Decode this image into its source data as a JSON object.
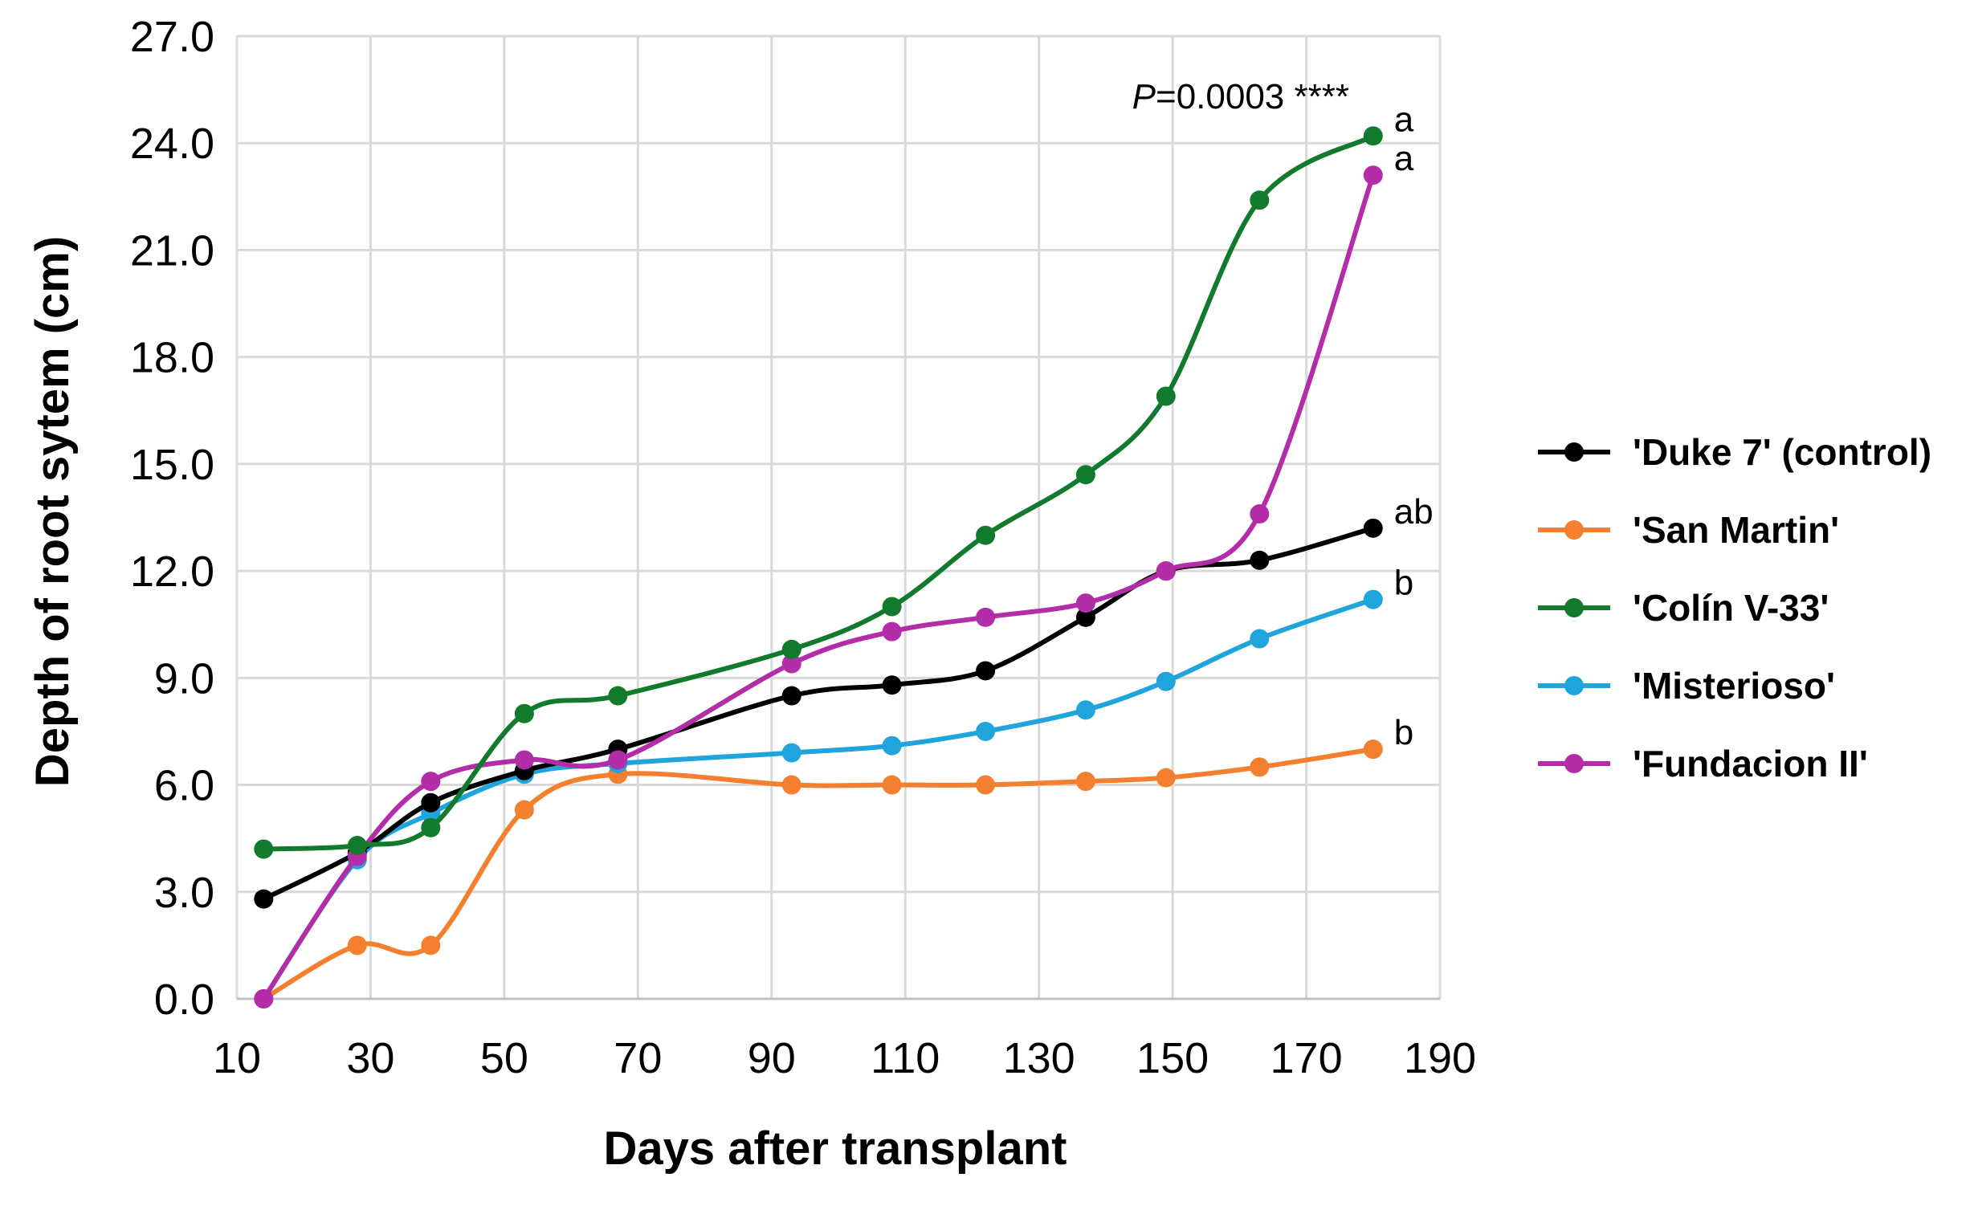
{
  "chart_data": {
    "type": "line",
    "xlabel": "Days after transplant",
    "ylabel": "Depth of root sytem (cm)",
    "xlim": [
      10,
      190
    ],
    "ylim": [
      0,
      27
    ],
    "xticks": [
      10,
      30,
      50,
      70,
      90,
      110,
      130,
      150,
      170,
      190
    ],
    "yticks": [
      0,
      3,
      6,
      9,
      12,
      15,
      18,
      21,
      24,
      27
    ],
    "ytick_format": "1 decimal",
    "grid": true,
    "legend_position": "right",
    "x": [
      14,
      28,
      39,
      53,
      67,
      93,
      108,
      122,
      137,
      149,
      163,
      180
    ],
    "series": [
      {
        "name": "'Duke 7' (control)",
        "color": "#000000",
        "values": [
          2.8,
          4.1,
          5.5,
          6.4,
          7.0,
          8.5,
          8.8,
          9.2,
          10.7,
          12.0,
          12.3,
          13.2
        ],
        "end_label": "ab"
      },
      {
        "name": "'San Martin'",
        "color": "#F47F2F",
        "values": [
          0.0,
          1.5,
          1.5,
          5.3,
          6.3,
          6.0,
          6.0,
          6.0,
          6.1,
          6.2,
          6.5,
          7.0
        ],
        "end_label": "b"
      },
      {
        "name": "'Colín V-33'",
        "color": "#117A2C",
        "values": [
          4.2,
          4.3,
          4.8,
          8.0,
          8.5,
          9.8,
          11.0,
          13.0,
          14.7,
          16.9,
          22.4,
          24.2
        ],
        "end_label": "a"
      },
      {
        "name": "'Misterioso'",
        "color": "#1FA5DB",
        "values": [
          0.0,
          3.9,
          5.2,
          6.3,
          6.6,
          6.9,
          7.1,
          7.5,
          8.1,
          8.9,
          10.1,
          11.2
        ],
        "end_label": "b"
      },
      {
        "name": "'Fundacion II'",
        "color": "#B32CA8",
        "values": [
          0.0,
          4.0,
          6.1,
          6.7,
          6.7,
          9.4,
          10.3,
          10.7,
          11.1,
          12.0,
          13.6,
          23.1
        ],
        "end_label": "a"
      }
    ],
    "annotation": {
      "p_italic": "P",
      "p_rest": "=0.0003 ****"
    }
  }
}
